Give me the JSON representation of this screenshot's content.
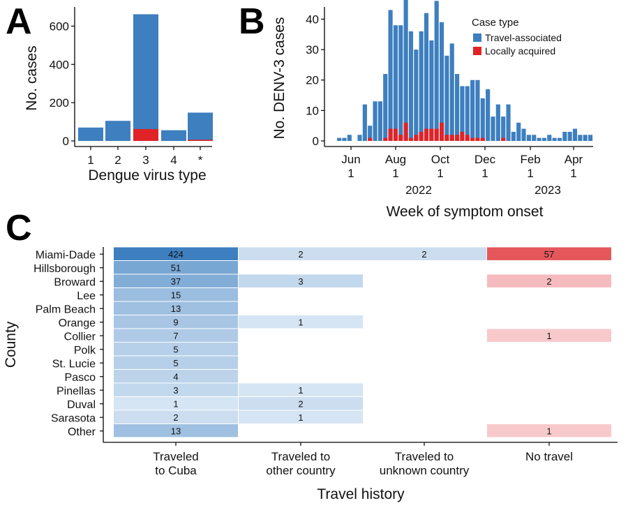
{
  "panels": {
    "a": "A",
    "b": "B",
    "c": "C"
  },
  "colors": {
    "travel": "#3d7fbf",
    "local": "#e02326"
  },
  "chart_data": [
    {
      "type": "bar",
      "panel": "A",
      "title": "",
      "xlabel": "Dengue virus type",
      "ylabel": "No. cases",
      "categories": [
        "1",
        "2",
        "3",
        "4",
        "*"
      ],
      "series": [
        {
          "name": "Travel-associated",
          "values": [
            70,
            105,
            600,
            56,
            142
          ]
        },
        {
          "name": "Locally acquired",
          "values": [
            0,
            0,
            62,
            0,
            6
          ]
        }
      ],
      "ylim": [
        0,
        700
      ],
      "yticks": [
        0,
        200,
        400,
        600
      ],
      "stacked": true
    },
    {
      "type": "bar",
      "panel": "B",
      "xlabel": "Week of symptom onset",
      "ylabel": "No. DENV-3 cases",
      "legend_title": "Case type",
      "legend_position": "top-right",
      "x_ticks": [
        {
          "month": "Jun",
          "day": "1"
        },
        {
          "month": "Aug",
          "day": "1"
        },
        {
          "month": "Oct",
          "day": "1"
        },
        {
          "month": "Dec",
          "day": "1"
        },
        {
          "month": "Feb",
          "day": "1"
        },
        {
          "month": "Apr",
          "day": "1"
        }
      ],
      "years": [
        "2022",
        "2023"
      ],
      "yticks": [
        0,
        10,
        20,
        30,
        40
      ],
      "ylim": [
        0,
        44
      ],
      "weeks_start": "2022-05-13",
      "series": [
        {
          "name": "Travel-associated",
          "values": [
            1,
            1,
            2,
            0,
            2,
            12,
            4,
            13,
            13,
            21,
            39,
            34,
            36,
            43,
            35,
            28,
            33,
            38,
            29,
            42,
            33,
            26,
            30,
            20,
            15,
            16,
            19,
            19,
            13,
            17,
            8,
            12,
            7,
            12,
            3,
            6,
            4,
            2,
            2,
            1,
            1,
            2,
            1,
            1,
            3,
            3,
            4,
            2,
            2,
            2
          ]
        },
        {
          "name": "Locally acquired",
          "values": [
            0,
            0,
            0,
            0,
            0,
            0,
            1,
            0,
            0,
            1,
            4,
            4,
            2,
            6,
            1,
            2,
            3,
            4,
            4,
            4,
            6,
            2,
            2,
            2,
            3,
            2,
            1,
            1,
            1,
            0,
            0,
            0,
            1,
            0,
            0,
            0,
            0,
            0,
            0,
            0,
            0,
            0,
            0,
            0,
            0,
            0,
            0,
            0,
            0,
            0
          ]
        }
      ]
    },
    {
      "type": "heatmap",
      "panel": "C",
      "xlabel": "Travel history",
      "ylabel": "County",
      "columns": [
        {
          "line1": "Traveled",
          "line2": "to Cuba"
        },
        {
          "line1": "Traveled to",
          "line2": "other country"
        },
        {
          "line1": "Traveled to",
          "line2": "unknown country"
        },
        {
          "line1": "No travel",
          "line2": ""
        }
      ],
      "rows": [
        "Miami-Dade",
        "Hillsborough",
        "Broward",
        "Lee",
        "Palm Beach",
        "Orange",
        "Collier",
        "Polk",
        "St. Lucie",
        "Pasco",
        "Pinellas",
        "Duval",
        "Sarasota",
        "Other"
      ],
      "values": [
        [
          424,
          2,
          2,
          57
        ],
        [
          51,
          null,
          null,
          null
        ],
        [
          37,
          3,
          null,
          2
        ],
        [
          15,
          null,
          null,
          null
        ],
        [
          13,
          null,
          null,
          null
        ],
        [
          9,
          1,
          null,
          null
        ],
        [
          7,
          null,
          null,
          1
        ],
        [
          5,
          null,
          null,
          null
        ],
        [
          5,
          null,
          null,
          null
        ],
        [
          4,
          null,
          null,
          null
        ],
        [
          3,
          1,
          null,
          null
        ],
        [
          1,
          2,
          null,
          null
        ],
        [
          2,
          1,
          null,
          null
        ],
        [
          13,
          null,
          null,
          1
        ]
      ]
    }
  ]
}
